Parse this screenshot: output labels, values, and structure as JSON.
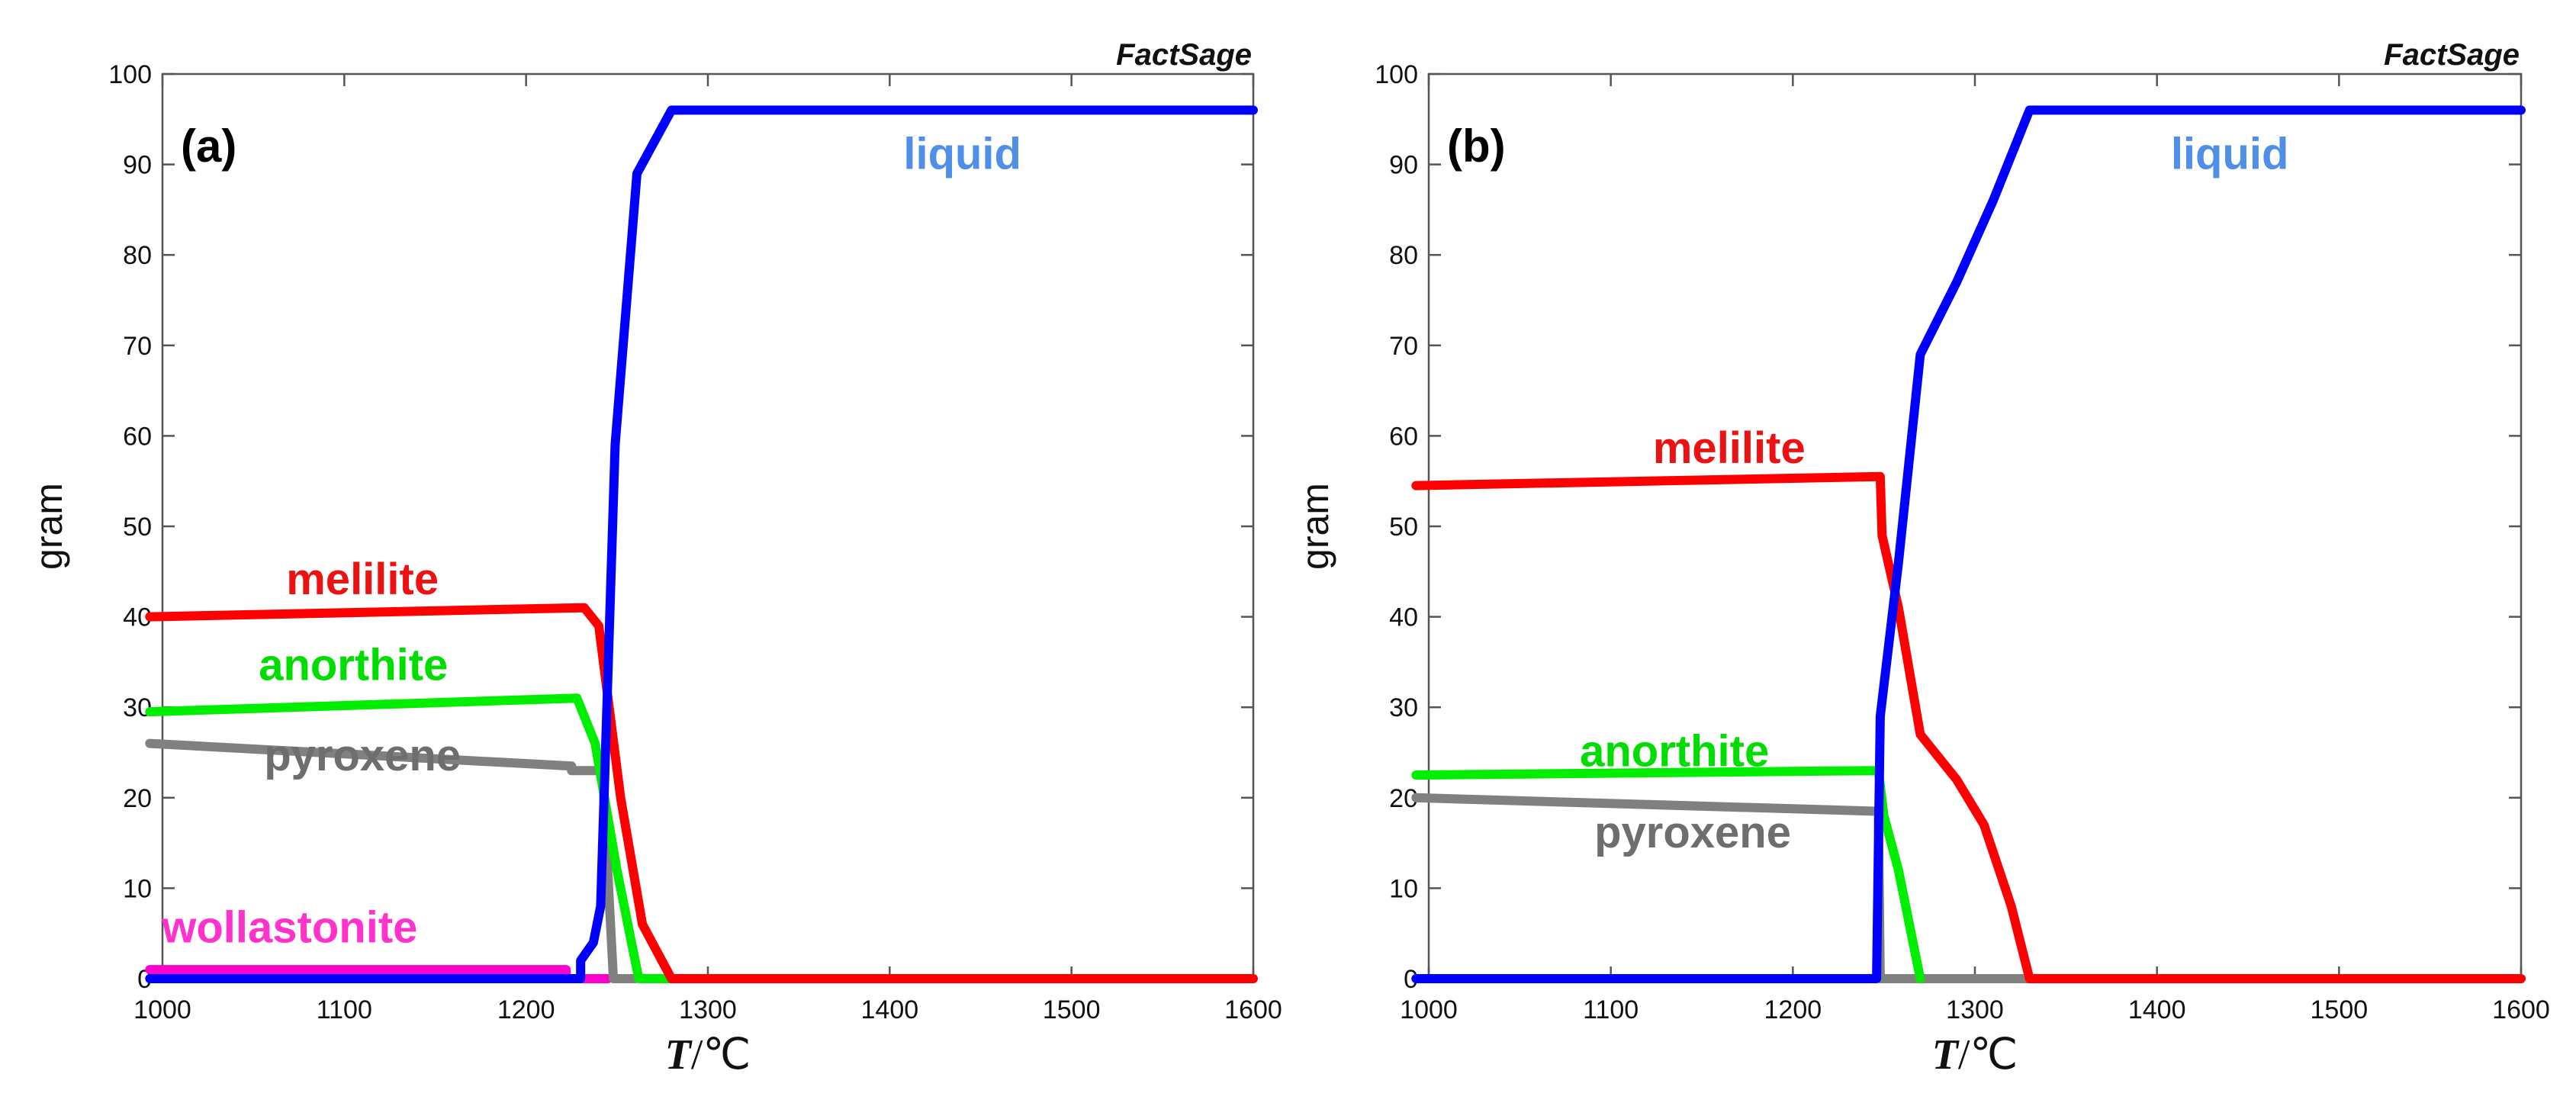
{
  "chart_data": [
    {
      "type": "line",
      "panel_label": "(a)",
      "watermark": "FactSage",
      "xlabel": {
        "italic": "T",
        "rest": "/℃"
      },
      "ylabel": "gram",
      "xlim": [
        1000,
        1600
      ],
      "ylim": [
        0,
        100
      ],
      "xticks": [
        1000,
        1100,
        1200,
        1300,
        1400,
        1500,
        1600
      ],
      "yticks": [
        0,
        10,
        20,
        30,
        40,
        50,
        60,
        70,
        80,
        90,
        100
      ],
      "series": [
        {
          "name": "wollastonite",
          "color": "#ff00cc",
          "label_color": "#ff33cc",
          "label_at": [
            1070,
            4
          ],
          "points": [
            [
              993,
              1
            ],
            [
              1222,
              1
            ],
            [
              1222,
              0
            ],
            [
              1245,
              0
            ]
          ]
        },
        {
          "name": "pyroxene",
          "color": "#808080",
          "label_color": "#6e6e6e",
          "label_at": [
            1110,
            23
          ],
          "points": [
            [
              993,
              26
            ],
            [
              1225,
              23.5
            ],
            [
              1225,
              23
            ],
            [
              1242,
              23
            ],
            [
              1248,
              0
            ],
            [
              1260,
              0
            ]
          ]
        },
        {
          "name": "anorthite",
          "color": "#00ee00",
          "label_color": "#00dd00",
          "label_at": [
            1105,
            33
          ],
          "points": [
            [
              993,
              29.5
            ],
            [
              1228,
              31
            ],
            [
              1238,
              26
            ],
            [
              1250,
              12
            ],
            [
              1262,
              0
            ],
            [
              1280,
              0
            ]
          ]
        },
        {
          "name": "melilite",
          "color": "#ff0000",
          "label_color": "#ee1111",
          "label_at": [
            1110,
            42.5
          ],
          "points": [
            [
              993,
              40
            ],
            [
              1232,
              41
            ],
            [
              1240,
              39
            ],
            [
              1252,
              20
            ],
            [
              1264,
              6
            ],
            [
              1280,
              0
            ],
            [
              1600,
              0
            ]
          ]
        },
        {
          "name": "liquid",
          "color": "#0000ff",
          "label_color": "#4f8fe8",
          "label_at": [
            1440,
            89.5
          ],
          "points": [
            [
              993,
              0
            ],
            [
              1230,
              0
            ],
            [
              1230,
              2
            ],
            [
              1237,
              4
            ],
            [
              1241,
              8
            ],
            [
              1249,
              59
            ],
            [
              1261,
              89
            ],
            [
              1280,
              96
            ],
            [
              1600,
              96
            ]
          ]
        }
      ]
    },
    {
      "type": "line",
      "panel_label": "(b)",
      "watermark": "FactSage",
      "xlabel": {
        "italic": "T",
        "rest": "/℃"
      },
      "ylabel": "gram",
      "xlim": [
        1000,
        1600
      ],
      "ylim": [
        0,
        100
      ],
      "xticks": [
        1000,
        1100,
        1200,
        1300,
        1400,
        1500,
        1600
      ],
      "yticks": [
        0,
        10,
        20,
        30,
        40,
        50,
        60,
        70,
        80,
        90,
        100
      ],
      "series": [
        {
          "name": "pyroxene",
          "color": "#808080",
          "label_color": "#6e6e6e",
          "label_at": [
            1145,
            14.5
          ],
          "points": [
            [
              993,
              20
            ],
            [
              1247,
              18.5
            ],
            [
              1248,
              0
            ],
            [
              1600,
              0
            ]
          ]
        },
        {
          "name": "anorthite",
          "color": "#00ee00",
          "label_color": "#00dd00",
          "label_at": [
            1135,
            23.5
          ],
          "points": [
            [
              993,
              22.5
            ],
            [
              1247,
              23
            ],
            [
              1250,
              18
            ],
            [
              1258,
              12
            ],
            [
              1270,
              0
            ]
          ]
        },
        {
          "name": "melilite",
          "color": "#ff0000",
          "label_color": "#ee1111",
          "label_at": [
            1165,
            57
          ],
          "points": [
            [
              993,
              54.5
            ],
            [
              1248,
              55.5
            ],
            [
              1249,
              49
            ],
            [
              1258,
              41
            ],
            [
              1270,
              27
            ],
            [
              1290,
              22
            ],
            [
              1305,
              17
            ],
            [
              1320,
              8
            ],
            [
              1330,
              0
            ],
            [
              1600,
              0
            ]
          ]
        },
        {
          "name": "liquid",
          "color": "#0000ff",
          "label_color": "#4f8fe8",
          "label_at": [
            1440,
            89.5
          ],
          "points": [
            [
              993,
              0
            ],
            [
              1246,
              0
            ],
            [
              1248,
              29
            ],
            [
              1258,
              46
            ],
            [
              1270,
              69
            ],
            [
              1290,
              77
            ],
            [
              1310,
              86
            ],
            [
              1330,
              96
            ],
            [
              1600,
              96
            ]
          ]
        }
      ]
    }
  ]
}
